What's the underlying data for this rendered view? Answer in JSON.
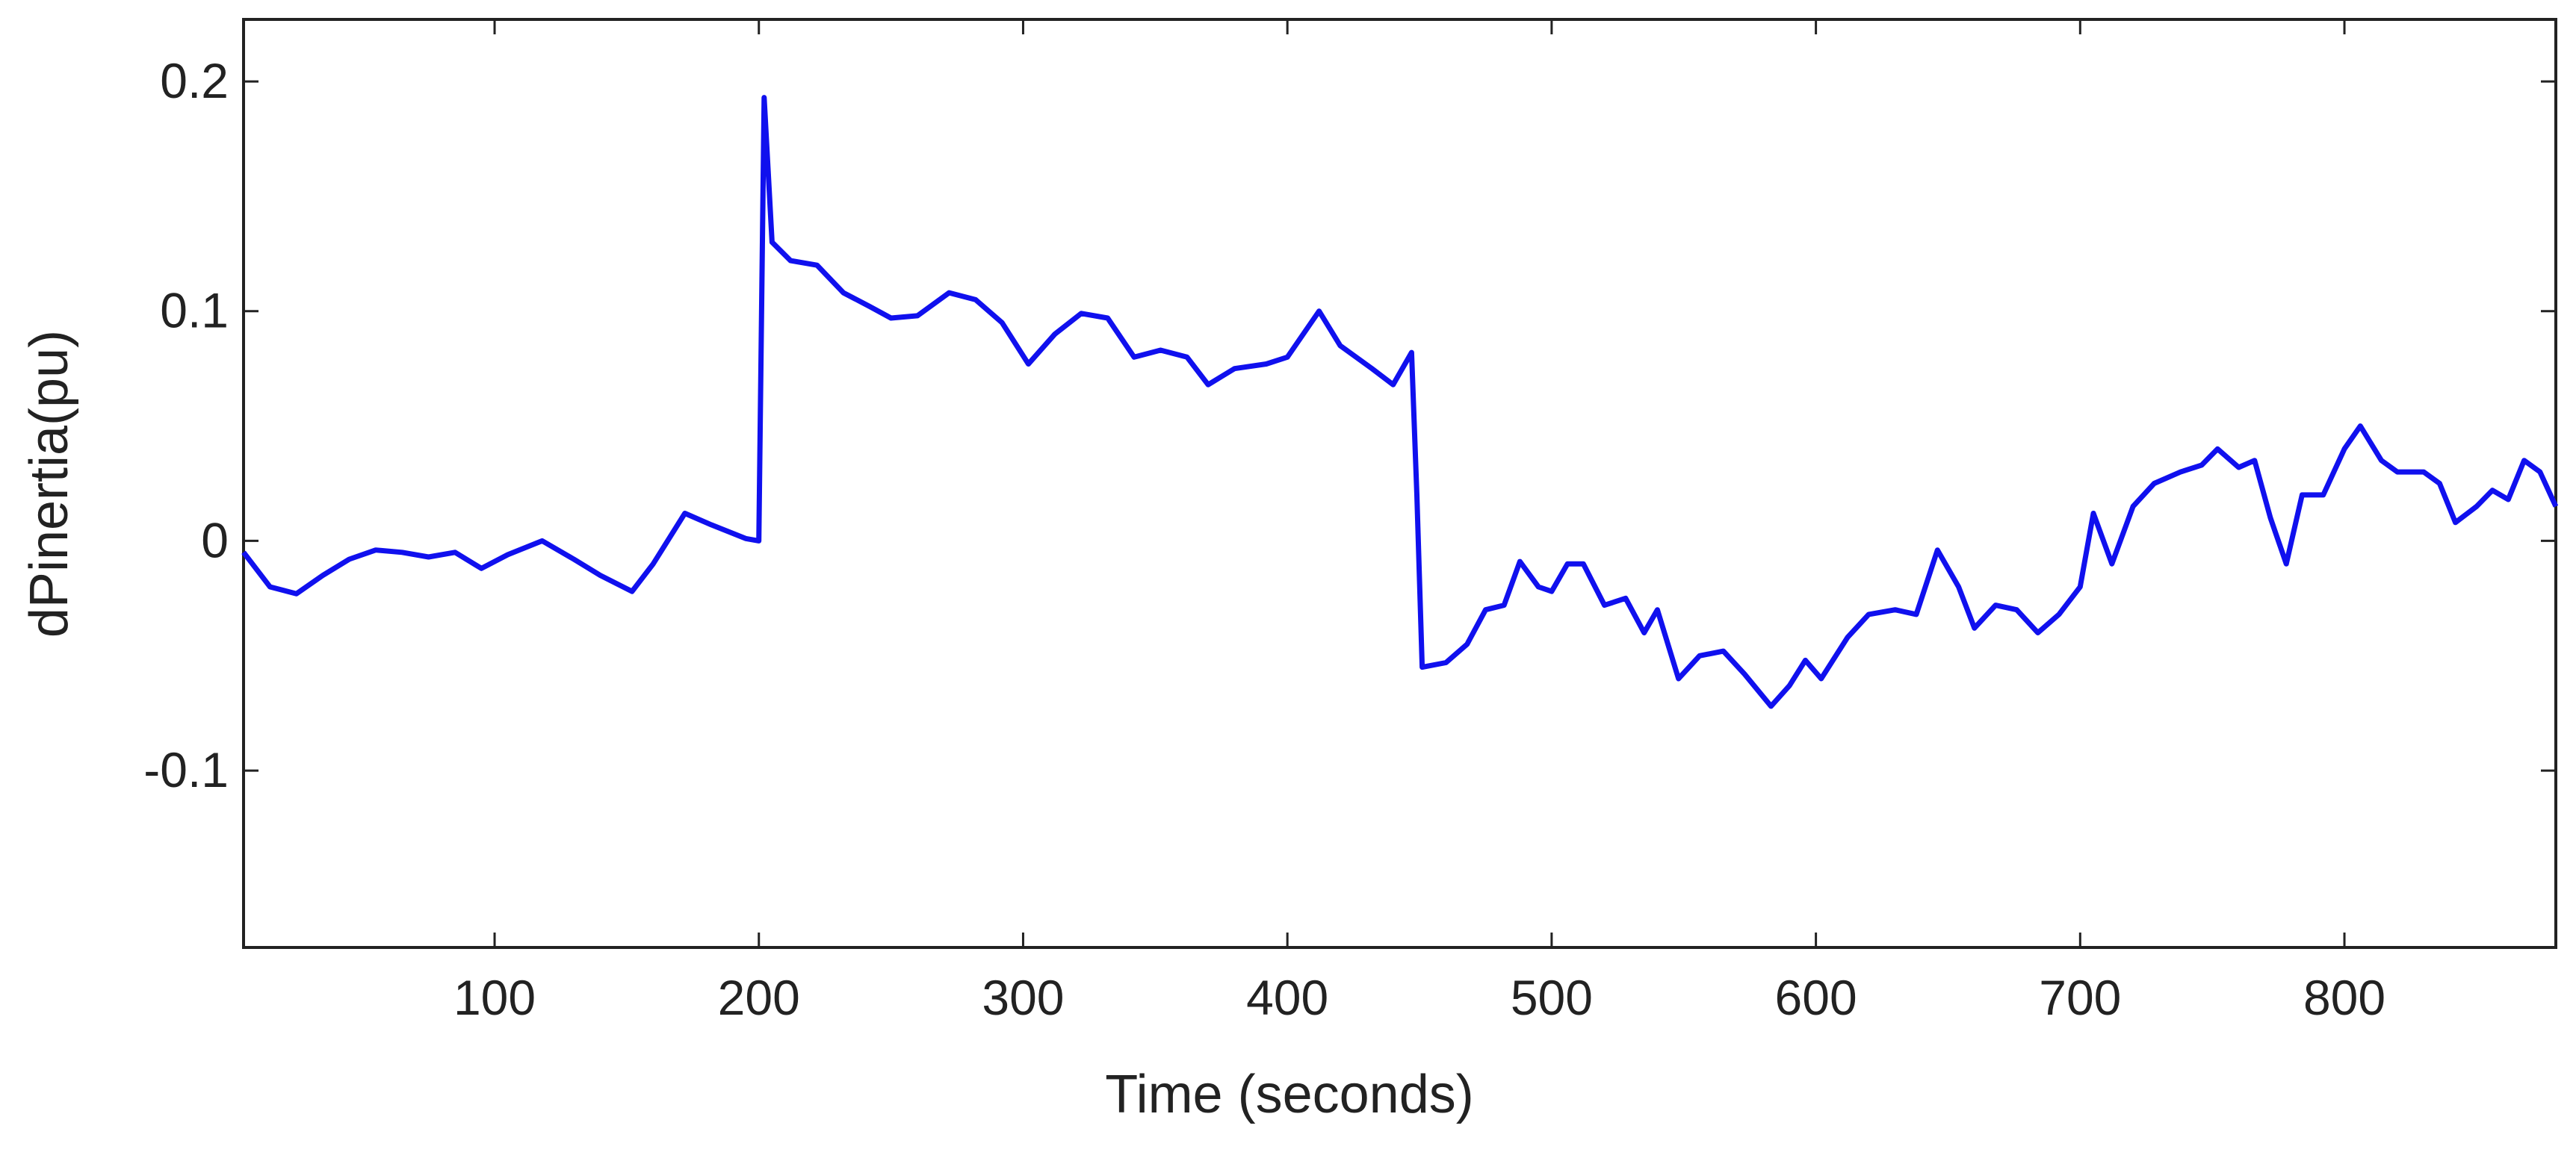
{
  "chart_data": {
    "type": "line",
    "ylabel": "dPinertia(pu)",
    "xlabel": "Time (seconds)",
    "x": [
      5,
      15,
      25,
      35,
      45,
      55,
      65,
      75,
      85,
      95,
      105,
      118,
      130,
      140,
      152,
      160,
      172,
      182,
      195,
      200,
      202,
      205,
      212,
      222,
      232,
      242,
      250,
      260,
      272,
      282,
      292,
      302,
      312,
      322,
      332,
      342,
      352,
      362,
      370,
      380,
      392,
      400,
      412,
      420,
      432,
      440,
      447,
      449,
      451,
      460,
      468,
      475,
      482,
      488,
      495,
      500,
      506,
      512,
      520,
      528,
      535,
      540,
      548,
      556,
      565,
      573,
      583,
      590,
      596,
      602,
      612,
      620,
      630,
      638,
      646,
      654,
      660,
      668,
      676,
      684,
      692,
      700,
      705,
      712,
      720,
      728,
      738,
      746,
      752,
      760,
      766,
      772,
      778,
      784,
      792,
      800,
      806,
      814,
      820,
      830,
      836,
      842,
      850,
      856,
      862,
      868,
      874,
      880
    ],
    "values": [
      -0.005,
      -0.02,
      -0.023,
      -0.015,
      -0.008,
      -0.004,
      -0.005,
      -0.007,
      -0.005,
      -0.012,
      -0.006,
      0.0,
      -0.008,
      -0.015,
      -0.022,
      -0.01,
      0.012,
      0.007,
      0.001,
      0.0,
      0.193,
      0.13,
      0.122,
      0.12,
      0.108,
      0.102,
      0.097,
      0.098,
      0.108,
      0.105,
      0.095,
      0.077,
      0.09,
      0.099,
      0.097,
      0.08,
      0.083,
      0.08,
      0.068,
      0.075,
      0.077,
      0.08,
      0.1,
      0.085,
      0.075,
      0.068,
      0.082,
      0.02,
      -0.055,
      -0.053,
      -0.045,
      -0.03,
      -0.028,
      -0.009,
      -0.02,
      -0.022,
      -0.01,
      -0.01,
      -0.028,
      -0.025,
      -0.04,
      -0.03,
      -0.06,
      -0.05,
      -0.048,
      -0.058,
      -0.072,
      -0.063,
      -0.052,
      -0.06,
      -0.042,
      -0.032,
      -0.03,
      -0.032,
      -0.004,
      -0.02,
      -0.038,
      -0.028,
      -0.03,
      -0.04,
      -0.032,
      -0.02,
      0.012,
      -0.01,
      0.015,
      0.025,
      0.03,
      0.033,
      0.04,
      0.032,
      0.035,
      0.01,
      -0.01,
      0.02,
      0.02,
      0.04,
      0.05,
      0.035,
      0.03,
      0.03,
      0.025,
      0.008,
      0.015,
      0.022,
      0.018,
      0.035,
      0.03,
      0.015
    ],
    "color": "#1010ee",
    "xlim": [
      5,
      880
    ],
    "xticks": [
      100,
      200,
      300,
      400,
      500,
      600,
      700,
      800
    ],
    "ylim": [
      -0.177,
      0.227
    ],
    "yticks": [
      -0.1,
      0,
      0.1,
      0.2
    ],
    "grid": false
  }
}
